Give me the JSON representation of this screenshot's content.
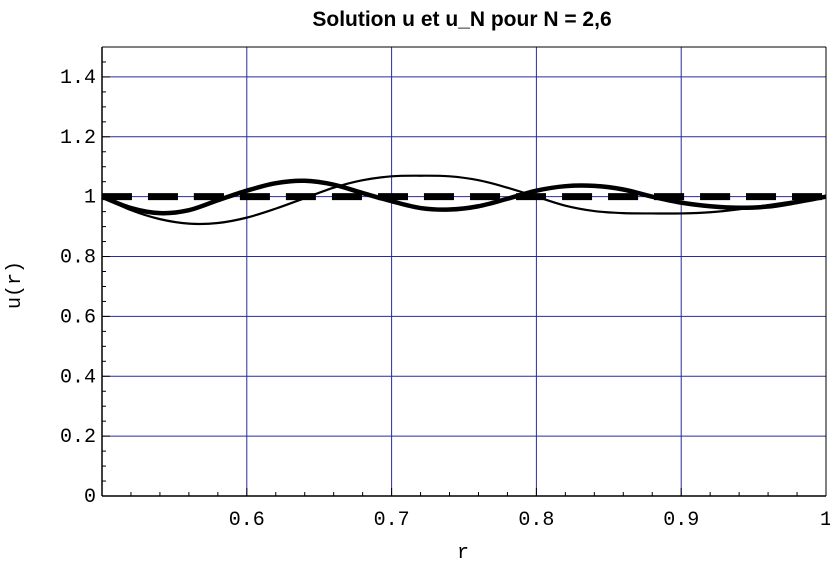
{
  "chart_data": {
    "type": "line",
    "title": "Solution u et u_N pour N = 2,6",
    "xlabel": "r",
    "ylabel": "u(r)",
    "xlim": [
      0.5,
      1.0
    ],
    "ylim": [
      0,
      1.5
    ],
    "x_ticks": [
      0.6,
      0.7,
      0.8,
      0.9,
      1.0
    ],
    "x_tick_labels": [
      "0.6",
      "0.7",
      "0.8",
      "0.9",
      "1"
    ],
    "y_ticks": [
      0,
      0.2,
      0.4,
      0.6,
      0.8,
      1.0,
      1.2,
      1.4
    ],
    "y_tick_labels": [
      "0",
      "0.2",
      "0.4",
      "0.6",
      "0.8",
      "1",
      "1.2",
      "1.4"
    ],
    "grid": true,
    "grid_color": "#2a2aa0",
    "series": [
      {
        "style": "dashed-thick",
        "x": [
          0.5,
          1.0
        ],
        "y": [
          1.0,
          1.0
        ]
      },
      {
        "style": "solid-thin",
        "x": [
          0.5,
          0.52,
          0.54,
          0.56,
          0.58,
          0.6,
          0.62,
          0.64,
          0.66,
          0.68,
          0.7,
          0.72,
          0.74,
          0.76,
          0.78,
          0.8,
          0.82,
          0.84,
          0.86,
          0.88,
          0.9,
          0.92,
          0.94,
          0.96,
          0.98,
          1.0
        ],
        "y": [
          1.0,
          0.955,
          0.925,
          0.91,
          0.912,
          0.93,
          0.96,
          0.995,
          1.03,
          1.055,
          1.068,
          1.07,
          1.068,
          1.055,
          1.03,
          1.0,
          0.97,
          0.952,
          0.945,
          0.944,
          0.944,
          0.948,
          0.958,
          0.972,
          0.986,
          1.0
        ]
      },
      {
        "style": "solid-thick",
        "x": [
          0.5,
          0.52,
          0.54,
          0.56,
          0.58,
          0.6,
          0.62,
          0.64,
          0.66,
          0.68,
          0.7,
          0.72,
          0.74,
          0.76,
          0.78,
          0.8,
          0.82,
          0.84,
          0.86,
          0.88,
          0.9,
          0.92,
          0.94,
          0.96,
          0.98,
          1.0
        ],
        "y": [
          1.0,
          0.962,
          0.945,
          0.955,
          0.988,
          1.02,
          1.045,
          1.053,
          1.04,
          1.012,
          0.985,
          0.962,
          0.957,
          0.968,
          0.993,
          1.02,
          1.035,
          1.036,
          1.024,
          1.0,
          0.98,
          0.968,
          0.963,
          0.967,
          0.982,
          1.0
        ]
      }
    ]
  }
}
